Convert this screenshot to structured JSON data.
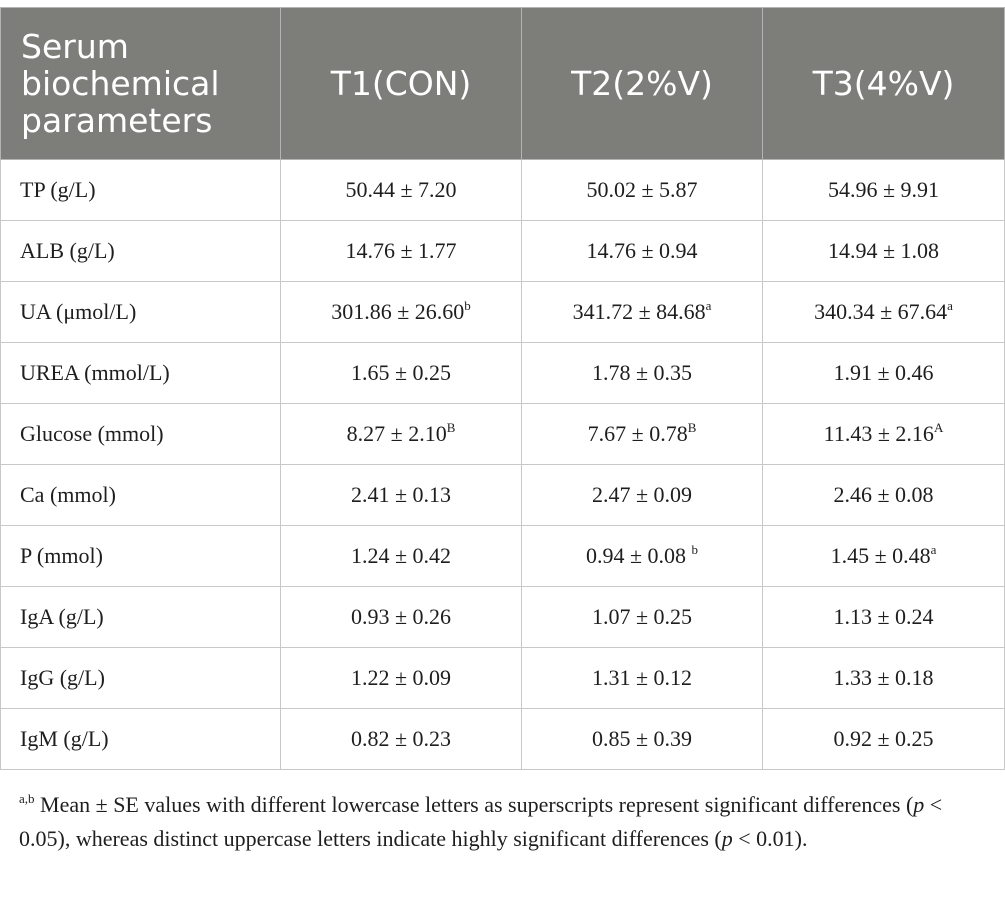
{
  "table": {
    "headers": [
      "Serum biochemical parameters",
      "T1(CON)",
      "T2(2%V)",
      "T3(4%V)"
    ],
    "rows": [
      {
        "param": "TP (g/L)",
        "t1": "50.44 ± 7.20",
        "t1_sup": "",
        "t2": "50.02 ± 5.87",
        "t2_sup": "",
        "t3": "54.96 ± 9.91",
        "t3_sup": ""
      },
      {
        "param": "ALB (g/L)",
        "t1": "14.76 ± 1.77",
        "t1_sup": "",
        "t2": "14.76 ± 0.94",
        "t2_sup": "",
        "t3": "14.94 ± 1.08",
        "t3_sup": ""
      },
      {
        "param": "UA (μmol/L)",
        "t1": "301.86 ± 26.60",
        "t1_sup": "b",
        "t2": "341.72 ± 84.68",
        "t2_sup": "a",
        "t3": "340.34 ± 67.64",
        "t3_sup": "a"
      },
      {
        "param": "UREA (mmol/L)",
        "t1": "1.65 ± 0.25",
        "t1_sup": "",
        "t2": "1.78 ± 0.35",
        "t2_sup": "",
        "t3": "1.91 ± 0.46",
        "t3_sup": ""
      },
      {
        "param": "Glucose (mmol)",
        "t1": "8.27 ± 2.10",
        "t1_sup": "B",
        "t2": "7.67 ± 0.78",
        "t2_sup": "B",
        "t3": "11.43 ± 2.16",
        "t3_sup": "A"
      },
      {
        "param": "Ca (mmol)",
        "t1": "2.41 ± 0.13",
        "t1_sup": "",
        "t2": "2.47 ± 0.09",
        "t2_sup": "",
        "t3": "2.46 ± 0.08",
        "t3_sup": ""
      },
      {
        "param": "P (mmol)",
        "t1": "1.24 ± 0.42",
        "t1_sup": "",
        "t2": "0.94 ± 0.08 ",
        "t2_sup": "b",
        "t3": "1.45 ± 0.48",
        "t3_sup": "a"
      },
      {
        "param": "IgA (g/L)",
        "t1": "0.93 ± 0.26",
        "t1_sup": "",
        "t2": "1.07 ± 0.25",
        "t2_sup": "",
        "t3": "1.13 ± 0.24",
        "t3_sup": ""
      },
      {
        "param": "IgG (g/L)",
        "t1": "1.22 ± 0.09",
        "t1_sup": "",
        "t2": "1.31 ± 0.12",
        "t2_sup": "",
        "t3": "1.33 ± 0.18",
        "t3_sup": ""
      },
      {
        "param": "IgM (g/L)",
        "t1": "0.82 ± 0.23",
        "t1_sup": "",
        "t2": "0.85 ± 0.39",
        "t2_sup": "",
        "t3": "0.92 ± 0.25",
        "t3_sup": ""
      }
    ]
  },
  "footnote": {
    "sup": "a,b",
    "part1": " Mean ± SE values with different lowercase letters as superscripts represent significant differences (",
    "p1": "p",
    "part2": " < 0.05), whereas distinct uppercase letters indicate highly significant differences (",
    "p2": "p",
    "part3": " < 0.01)."
  },
  "colors": {
    "header_bg": "#7d7d79",
    "header_text": "#ffffff",
    "grid": "#c8c8c8"
  }
}
